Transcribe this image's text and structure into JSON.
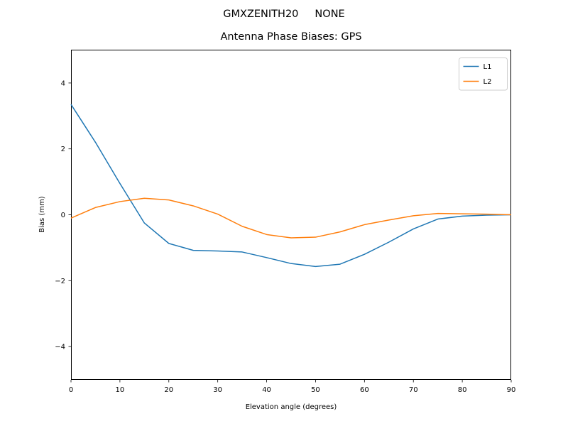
{
  "figure": {
    "suptitle": "GMXZENITH20     NONE"
  },
  "chart_data": {
    "type": "line",
    "title": "Antenna Phase Biases: GPS",
    "xlabel": "Elevation angle (degrees)",
    "ylabel": "Bias (mm)",
    "xlim": [
      0,
      90
    ],
    "ylim": [
      -5,
      5
    ],
    "x_ticks": [
      0,
      10,
      20,
      30,
      40,
      50,
      60,
      70,
      80,
      90
    ],
    "y_ticks": [
      -4,
      -2,
      0,
      2,
      4
    ],
    "grid": false,
    "legend_position": "upper right",
    "x": [
      0,
      5,
      10,
      15,
      20,
      25,
      30,
      35,
      40,
      45,
      50,
      55,
      60,
      65,
      70,
      75,
      80,
      85,
      90
    ],
    "series": [
      {
        "name": "L1",
        "color": "#1f77b4",
        "values": [
          3.35,
          2.2,
          0.95,
          -0.25,
          -0.87,
          -1.08,
          -1.1,
          -1.13,
          -1.3,
          -1.48,
          -1.57,
          -1.5,
          -1.2,
          -0.83,
          -0.43,
          -0.13,
          -0.04,
          -0.01,
          0.0
        ]
      },
      {
        "name": "L2",
        "color": "#ff7f0e",
        "values": [
          -0.1,
          0.22,
          0.4,
          0.5,
          0.45,
          0.27,
          0.02,
          -0.35,
          -0.6,
          -0.7,
          -0.68,
          -0.52,
          -0.3,
          -0.16,
          -0.03,
          0.04,
          0.03,
          0.02,
          0.0
        ]
      }
    ],
    "line_width": 1.5,
    "colors": {
      "spine": "#000000",
      "legend_border": "#cccccc",
      "background": "#ffffff"
    }
  }
}
